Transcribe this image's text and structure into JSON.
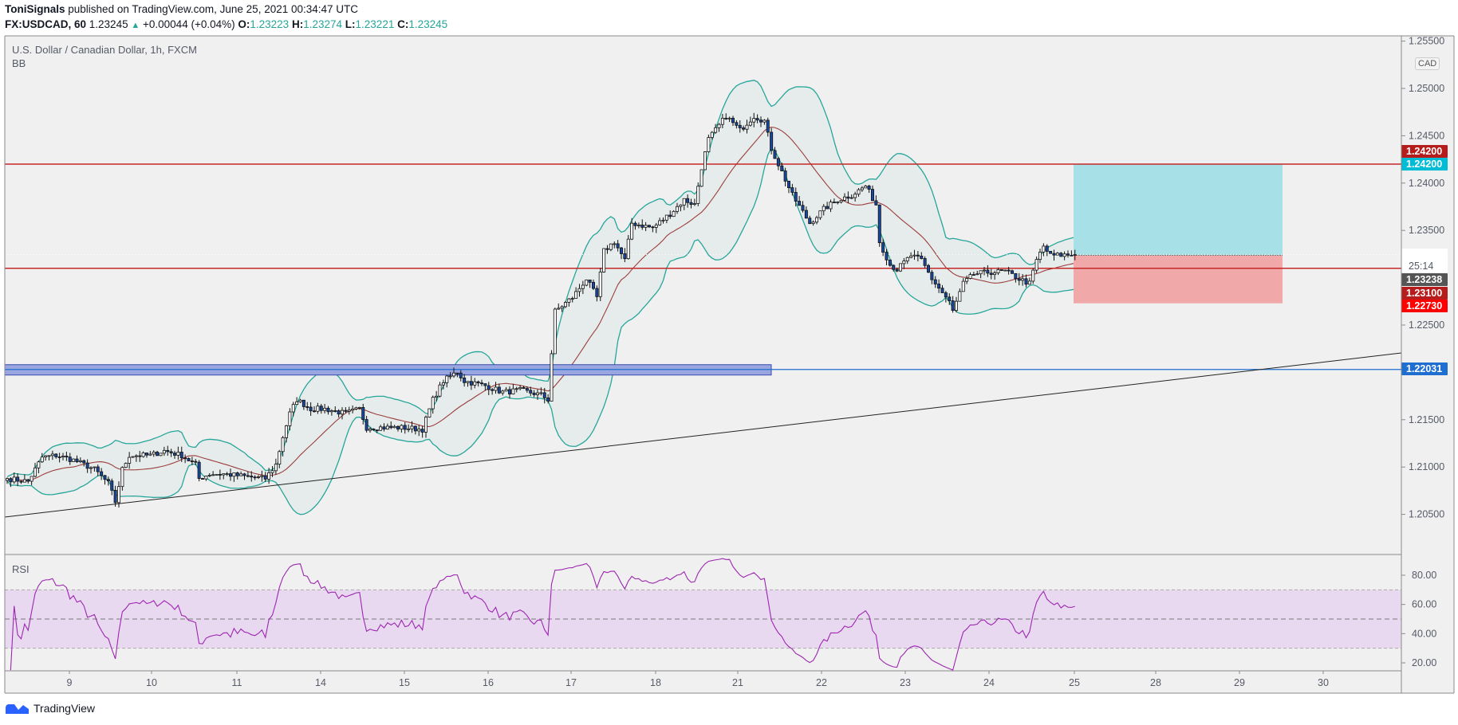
{
  "header": {
    "author": "ToniSignals",
    "published": "published on TradingView.com, June 25, 2021 00:34:47 UTC",
    "symbol": "FX:USDCAD, 60",
    "last": "1.23245",
    "change": "+0.00044 (+0.04%)",
    "o_label": "O:",
    "o": "1.23223",
    "h_label": "H:",
    "h": "1.23274",
    "l_label": "L:",
    "l": "1.23221",
    "c_label": "C:",
    "c": "1.23245"
  },
  "legend": {
    "title": "U.S. Dollar / Canadian Dollar, 1h, FXCM",
    "indicator": "BB",
    "rsi": "RSI"
  },
  "currency": "CAD",
  "footer": {
    "brand": "TradingView"
  },
  "colors": {
    "bull": "#ffffff",
    "bear": "#1848a0",
    "band": "#26a69a",
    "basis": "#9c3d3d",
    "hline": "#c62828",
    "support": "#1e6fd0",
    "rsi": "#9c27b0"
  },
  "chart_data": {
    "type": "candlestick",
    "title": "USDCAD 1h",
    "bars": 307,
    "close_keypoints": [
      [
        0,
        1.20878
      ],
      [
        6,
        1.20848
      ],
      [
        10,
        1.21103
      ],
      [
        14,
        1.21123
      ],
      [
        19,
        1.21074
      ],
      [
        25,
        1.20976
      ],
      [
        29,
        1.20828
      ],
      [
        31,
        1.20632
      ],
      [
        33,
        1.20976
      ],
      [
        35,
        1.21123
      ],
      [
        41,
        1.21123
      ],
      [
        45,
        1.21172
      ],
      [
        50,
        1.21123
      ],
      [
        54,
        1.21025
      ],
      [
        55,
        1.20878
      ],
      [
        58,
        1.20927
      ],
      [
        62,
        1.20927
      ],
      [
        69,
        1.20897
      ],
      [
        74,
        1.20878
      ],
      [
        77,
        1.21025
      ],
      [
        79,
        1.2132
      ],
      [
        81,
        1.21565
      ],
      [
        83,
        1.21712
      ],
      [
        87,
        1.21614
      ],
      [
        91,
        1.21614
      ],
      [
        97,
        1.21565
      ],
      [
        101,
        1.21614
      ],
      [
        103,
        1.21417
      ],
      [
        107,
        1.21417
      ],
      [
        113,
        1.21417
      ],
      [
        119,
        1.21398
      ],
      [
        122,
        1.21712
      ],
      [
        125,
        1.21909
      ],
      [
        129,
        1.22007
      ],
      [
        131,
        1.21909
      ],
      [
        137,
        1.2186
      ],
      [
        142,
        1.21791
      ],
      [
        147,
        1.21811
      ],
      [
        153,
        1.21762
      ],
      [
        155,
        1.21712
      ],
      [
        156,
        1.22203
      ],
      [
        157,
        1.22645
      ],
      [
        162,
        1.22792
      ],
      [
        166,
        1.22988
      ],
      [
        169,
        1.22792
      ],
      [
        171,
        1.23283
      ],
      [
        174,
        1.23381
      ],
      [
        177,
        1.23185
      ],
      [
        179,
        1.23577
      ],
      [
        185,
        1.23528
      ],
      [
        190,
        1.23676
      ],
      [
        194,
        1.23823
      ],
      [
        197,
        1.23774
      ],
      [
        199,
        1.24167
      ],
      [
        201,
        1.24462
      ],
      [
        203,
        1.2456
      ],
      [
        206,
        1.24707
      ],
      [
        210,
        1.2456
      ],
      [
        214,
        1.24707
      ],
      [
        217,
        1.24658
      ],
      [
        219,
        1.24363
      ],
      [
        222,
        1.24118
      ],
      [
        225,
        1.23872
      ],
      [
        230,
        1.23577
      ],
      [
        234,
        1.23725
      ],
      [
        238,
        1.23823
      ],
      [
        242,
        1.23872
      ],
      [
        246,
        1.2397
      ],
      [
        249,
        1.23774
      ],
      [
        250,
        1.23381
      ],
      [
        253,
        1.23136
      ],
      [
        255,
        1.23087
      ],
      [
        259,
        1.23234
      ],
      [
        262,
        1.23185
      ],
      [
        265,
        1.22988
      ],
      [
        267,
        1.2289
      ],
      [
        270,
        1.22743
      ],
      [
        271,
        1.22645
      ],
      [
        274,
        1.22939
      ],
      [
        277,
        1.23037
      ],
      [
        281,
        1.23057
      ],
      [
        286,
        1.23066
      ],
      [
        290,
        1.22988
      ],
      [
        293,
        1.22939
      ],
      [
        295,
        1.23185
      ],
      [
        297,
        1.23332
      ],
      [
        299,
        1.23234
      ],
      [
        306,
        1.23245
      ]
    ],
    "price_axis": {
      "range": [
        1.2,
        1.2555
      ],
      "ticks": [
        "1.25500",
        "1.25000",
        "1.24500",
        "1.24000",
        "1.23500",
        "1.22500",
        "1.21500",
        "1.21000",
        "1.20500"
      ]
    },
    "time_axis": {
      "ticks": [
        "9",
        "10",
        "11",
        "14",
        "15",
        "16",
        "17",
        "18",
        "21",
        "22",
        "23",
        "24",
        "25",
        "28",
        "29",
        "30"
      ]
    },
    "indicators": {
      "bb_length": 20,
      "bb_mult": 2,
      "rsi_length": 14
    },
    "rsi_axis": {
      "ticks": [
        "80.00",
        "60.00",
        "40.00",
        "20.00"
      ],
      "upper": 70,
      "lower": 30,
      "mid": 50
    },
    "levels": {
      "resistance": 1.242,
      "support_mid": 1.231,
      "support_zone": 1.22031,
      "target": 1.242,
      "entry": 1.23238,
      "stop": 1.2273,
      "current": 1.23245
    },
    "price_tags": [
      {
        "label": "1.24200",
        "color": "#b71c1c",
        "price": 1.2442
      },
      {
        "label": "1.24200",
        "color": "#00bcd4",
        "price": 1.242,
        "dark": true
      },
      {
        "label": "1.23245",
        "color": "#ffffff",
        "price": 1.23245,
        "dark": true,
        "sub": "25:14"
      },
      {
        "label": "1.23238",
        "color": "#555555",
        "price": 1.2307
      },
      {
        "label": "1.23100",
        "color": "#b71c1c",
        "price": 1.2289
      },
      {
        "label": "1.22730",
        "color": "#ff0000",
        "price": 1.2271
      },
      {
        "label": "1.22031",
        "color": "#1e6fd0",
        "price": 1.22031
      }
    ]
  }
}
